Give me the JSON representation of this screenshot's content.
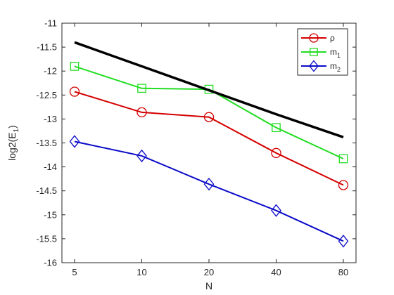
{
  "chart_data": {
    "type": "line",
    "x": [
      5,
      10,
      20,
      40,
      80
    ],
    "x_tick_labels": [
      "5",
      "10",
      "20",
      "40",
      "80"
    ],
    "x_scale": "log2",
    "xlabel": "N",
    "ylabel": {
      "main": "log2(E",
      "sub": "1",
      "suffix": ")"
    },
    "ylim": [
      -16,
      -11
    ],
    "y_ticks": [
      -16,
      -15.5,
      -15,
      -14.5,
      -14,
      -13.5,
      -13,
      -12.5,
      -12,
      -11.5,
      -11
    ],
    "y_tick_labels": [
      "-16",
      "-15.5",
      "-15",
      "-14.5",
      "-14",
      "-13.5",
      "-13",
      "-12.5",
      "-12",
      "-11.5",
      "-11"
    ],
    "grid": false,
    "legend_position": "top-right",
    "series": [
      {
        "name": "ρ",
        "name_main": "ρ",
        "name_sub": "",
        "color": "#d40000",
        "marker": "circle",
        "values": [
          -12.43,
          -12.86,
          -12.96,
          -13.71,
          -14.38
        ]
      },
      {
        "name": "m1",
        "name_main": "m",
        "name_sub": "1",
        "color": "#22dd22",
        "marker": "square",
        "values": [
          -11.9,
          -12.36,
          -12.38,
          -13.18,
          -13.83
        ]
      },
      {
        "name": "m2",
        "name_main": "m",
        "name_sub": "2",
        "color": "#0a0ac8",
        "marker": "diamond",
        "values": [
          -13.47,
          -13.77,
          -14.36,
          -14.91,
          -15.55
        ]
      },
      {
        "name": "",
        "color": "#000000",
        "marker": "none",
        "values": [
          -11.4,
          -11.9,
          -12.4,
          -12.9,
          -13.38
        ]
      }
    ]
  }
}
